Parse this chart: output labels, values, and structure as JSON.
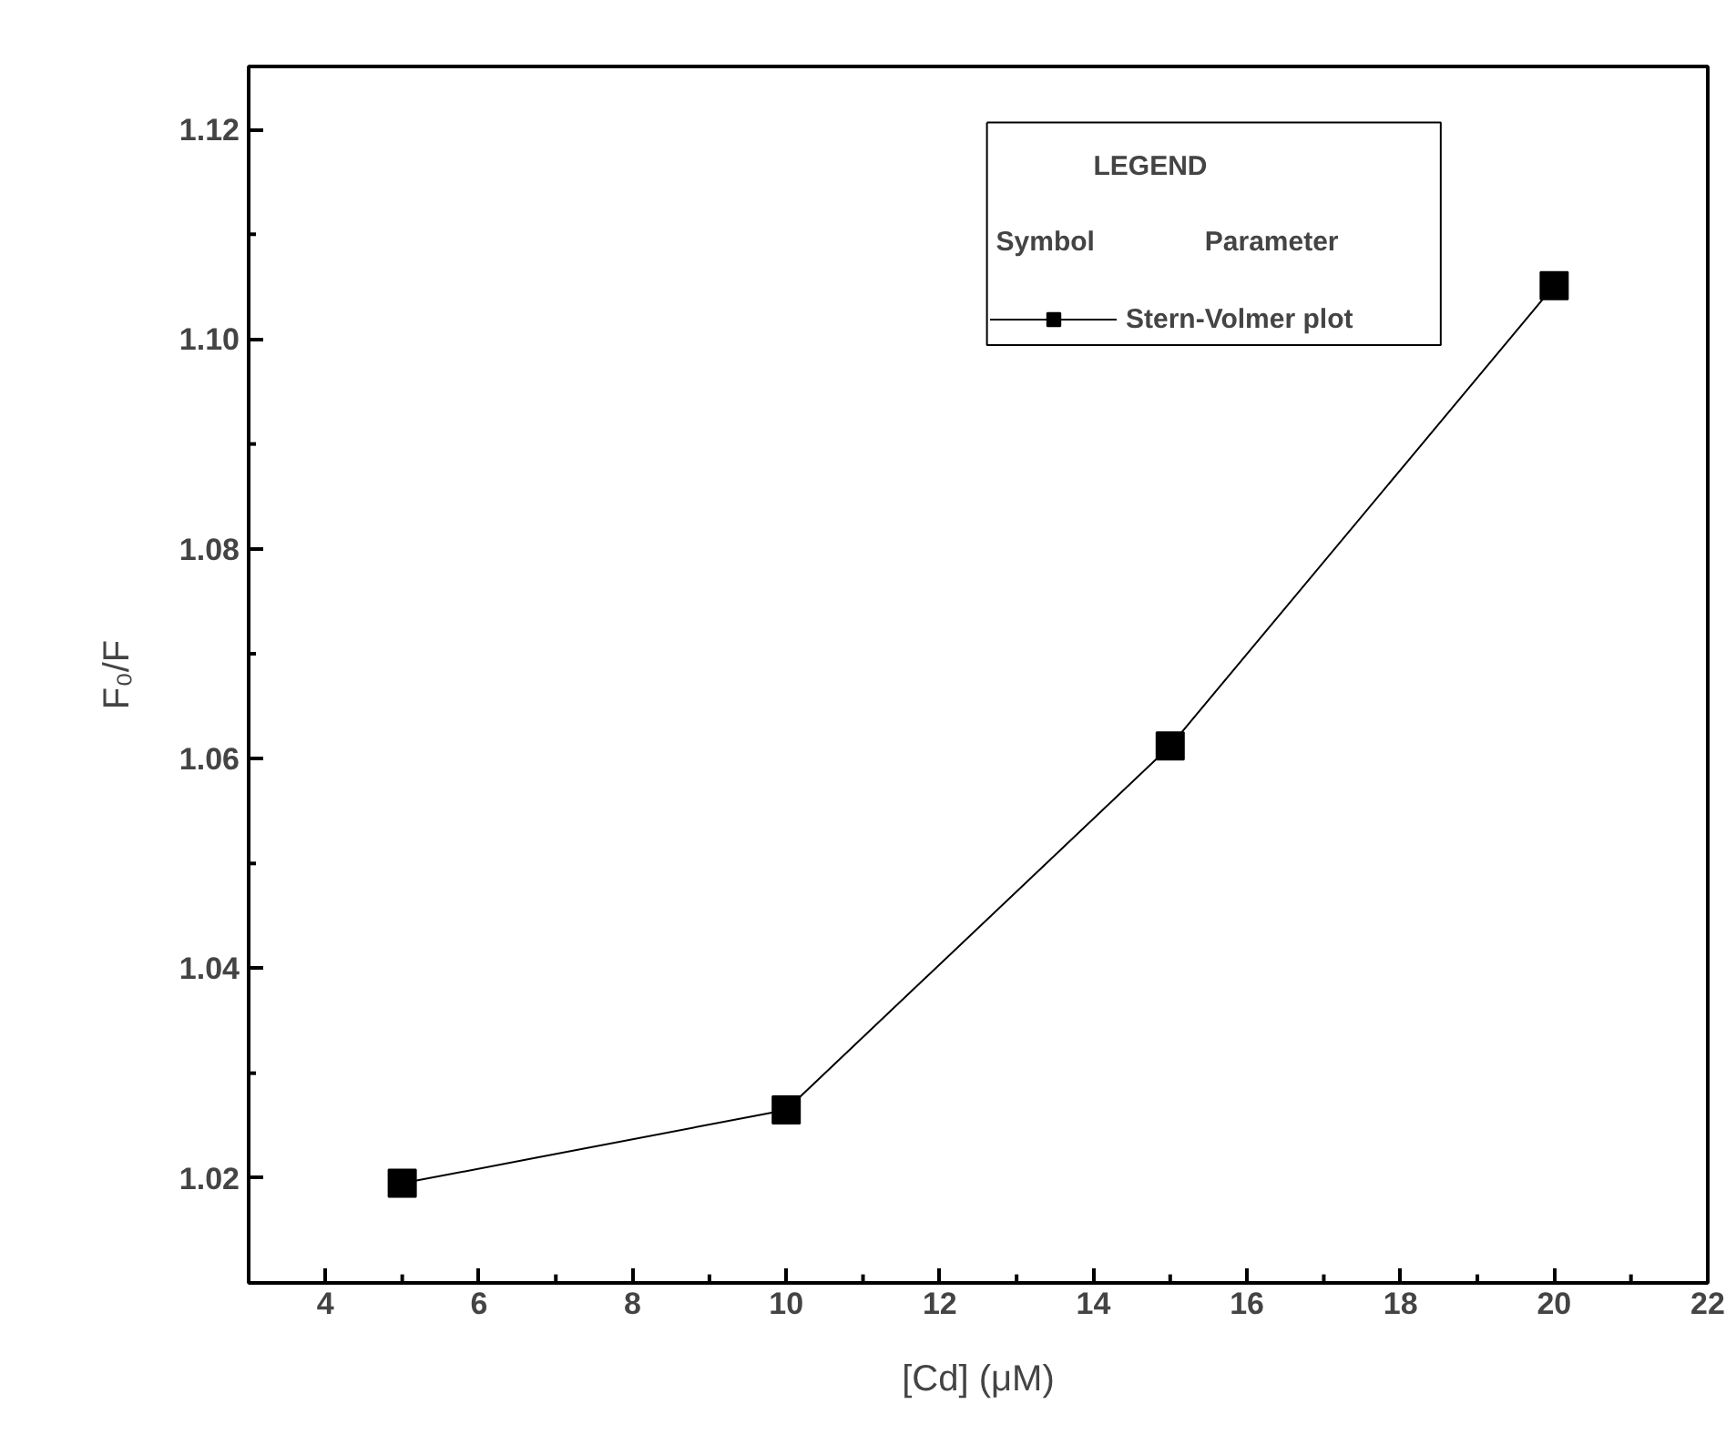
{
  "chart_data": {
    "type": "line",
    "xlabel": "[Cd] (μM)",
    "ylabel": "F₀/F",
    "legend_title": "LEGEND",
    "annotations": [
      "Symbol",
      "Parameter"
    ],
    "x": [
      5,
      10,
      15,
      20
    ],
    "series": [
      {
        "name": "Stern-Volmer plot",
        "color": "#000000",
        "values": [
          1.0195,
          1.0265,
          1.0612,
          1.1051
        ]
      }
    ],
    "xlim": [
      3,
      22
    ],
    "xticks": [
      4,
      6,
      8,
      10,
      12,
      14,
      16,
      18,
      20,
      22
    ],
    "ylim": [
      1.01,
      1.126
    ],
    "yticks": [
      {
        "value": 1.02,
        "label": "1.02"
      },
      {
        "value": 1.04,
        "label": "1.04"
      },
      {
        "value": 1.06,
        "label": "1.06"
      },
      {
        "value": 1.08,
        "label": "1.08"
      },
      {
        "value": 1.1,
        "label": "1.10"
      },
      {
        "value": 1.12,
        "label": "1.12"
      }
    ],
    "marker": "square",
    "line_style": "solid",
    "grid": false,
    "legend": "top right"
  }
}
